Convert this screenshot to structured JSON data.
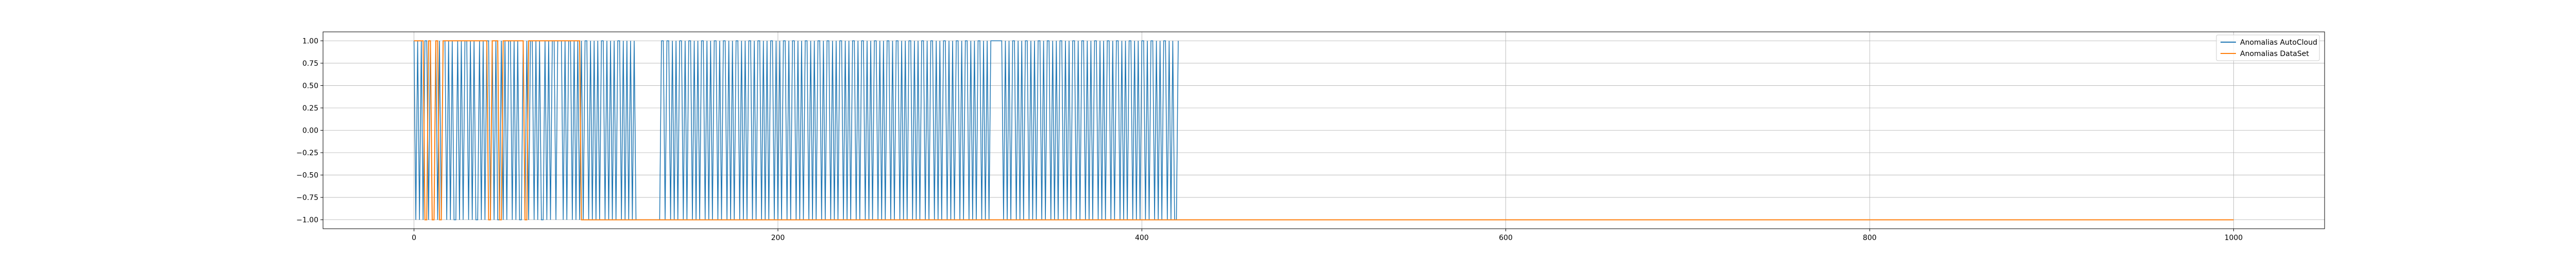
{
  "chart_data": {
    "type": "line",
    "title": "",
    "xlabel": "",
    "ylabel": "",
    "xlim": [
      -50,
      1050
    ],
    "ylim": [
      -1.1,
      1.1
    ],
    "xticks": [
      0,
      200,
      400,
      600,
      800,
      1000
    ],
    "xtick_labels": [
      "0",
      "200",
      "400",
      "600",
      "800",
      "1000"
    ],
    "yticks": [
      1.0,
      0.75,
      0.5,
      0.25,
      0.0,
      -0.25,
      -0.5,
      -0.75,
      -1.0
    ],
    "ytick_labels": [
      "1.00",
      "0.75",
      "0.50",
      "0.25",
      "0.00",
      "−0.25",
      "−0.50",
      "−0.75",
      "−1.00"
    ],
    "grid": true,
    "legend_position": "top-right",
    "series": [
      {
        "name": "Anomalias AutoCloud",
        "color": "#1f77b4",
        "values": [
          1,
          -1,
          1,
          -1,
          1,
          -1,
          1,
          1,
          -1,
          1,
          -1,
          -1,
          1,
          -1,
          1,
          -1,
          1,
          1,
          -1,
          1,
          -1,
          1,
          -1,
          -1,
          1,
          -1,
          1,
          -1,
          1,
          1,
          -1,
          1,
          -1,
          1,
          -1,
          -1,
          1,
          -1,
          1,
          -1,
          1,
          1,
          -1,
          1,
          -1,
          1,
          -1,
          -1,
          1,
          -1,
          1,
          -1,
          1,
          1,
          -1,
          1,
          -1,
          1,
          -1,
          -1,
          1,
          -1,
          1,
          -1,
          1,
          1,
          -1,
          1,
          -1,
          1,
          -1,
          -1,
          1,
          -1,
          1,
          -1,
          1,
          1,
          -1,
          1,
          1,
          1,
          -1,
          1,
          -1,
          1,
          1,
          -1,
          1,
          -1,
          1,
          -1,
          1,
          -1,
          1,
          1,
          -1,
          1,
          -1,
          1,
          -1,
          1,
          -1,
          1,
          1,
          -1,
          1,
          -1,
          1,
          -1,
          1,
          -1,
          1,
          1,
          -1,
          1,
          -1,
          1,
          -1,
          1,
          -1,
          1,
          -1,
          -1,
          -1,
          -1,
          -1,
          -1,
          -1,
          -1,
          -1,
          -1,
          -1,
          -1,
          -1,
          -1,
          1,
          1,
          -1,
          1,
          1,
          -1,
          1,
          -1,
          1,
          -1,
          1,
          1,
          -1,
          1,
          -1,
          1,
          1,
          -1,
          1,
          -1,
          1,
          -1,
          1,
          1,
          -1,
          1,
          -1,
          1,
          -1,
          1,
          1,
          -1,
          1,
          -1,
          1,
          1,
          -1,
          1,
          -1,
          1,
          -1,
          1,
          1,
          -1,
          1,
          -1,
          1,
          -1,
          1,
          1,
          -1,
          1,
          -1,
          1,
          1,
          -1,
          1,
          -1,
          1,
          -1,
          1,
          1,
          -1,
          1,
          -1,
          1,
          -1,
          1,
          1,
          -1,
          1,
          -1,
          1,
          1,
          -1,
          1,
          -1,
          1,
          -1,
          1,
          1,
          -1,
          1,
          -1,
          1,
          -1,
          1,
          1,
          -1,
          1,
          -1,
          1,
          1,
          -1,
          1,
          -1,
          1,
          -1,
          1,
          1,
          -1,
          1,
          -1,
          1,
          -1,
          1,
          1,
          -1,
          1,
          -1,
          1,
          1,
          -1,
          1,
          -1,
          1,
          -1,
          1,
          1,
          -1,
          1,
          -1,
          1,
          -1,
          1,
          1,
          -1,
          1,
          -1,
          1,
          1,
          -1,
          1,
          -1,
          1,
          -1,
          1,
          1,
          -1,
          1,
          -1,
          1,
          -1,
          1,
          1,
          -1,
          1,
          -1,
          1,
          1,
          -1,
          1,
          -1,
          1,
          -1,
          1,
          1,
          -1,
          1,
          -1,
          1,
          -1,
          1,
          1,
          -1,
          1,
          -1,
          1,
          1,
          -1,
          1,
          -1,
          1,
          -1,
          1,
          1,
          -1,
          1,
          -1,
          1,
          -1,
          1,
          1,
          1,
          1,
          1,
          1,
          1,
          -1,
          1,
          -1,
          1,
          -1,
          1,
          1,
          -1,
          1,
          -1,
          1,
          -1,
          1,
          1,
          -1,
          1,
          -1,
          1,
          -1,
          1,
          1,
          -1,
          1,
          -1,
          1,
          1,
          -1,
          1,
          -1,
          1,
          -1,
          1,
          1,
          -1,
          1,
          -1,
          1,
          -1,
          1,
          1,
          -1,
          1,
          -1,
          1,
          1,
          -1,
          1,
          -1,
          1,
          -1,
          1,
          1,
          -1,
          1,
          -1,
          1,
          -1,
          1,
          1,
          -1,
          1,
          -1,
          1,
          1,
          -1,
          1,
          -1,
          1,
          -1,
          1,
          1,
          -1,
          1,
          -1,
          1,
          -1,
          1,
          1,
          -1,
          1,
          -1,
          1,
          1,
          -1,
          1,
          -1,
          1,
          -1,
          1,
          1,
          -1,
          1,
          -1,
          1,
          -1,
          -1,
          1
        ]
      },
      {
        "name": "Anomalias DataSet",
        "color": "#ff7f0e",
        "segments": [
          {
            "x_start": 0,
            "x_end": 5,
            "value": 1
          },
          {
            "x_start": 6,
            "x_end": 7,
            "value": -1
          },
          {
            "x_start": 8,
            "x_end": 9,
            "value": 1
          },
          {
            "x_start": 10,
            "x_end": 11,
            "value": -1
          },
          {
            "x_start": 12,
            "x_end": 13,
            "value": 1
          },
          {
            "x_start": 14,
            "x_end": 15,
            "value": -1
          },
          {
            "x_start": 16,
            "x_end": 18,
            "value": 1
          },
          {
            "x_start": 19,
            "x_end": 40,
            "value": 1
          },
          {
            "x_start": 41,
            "x_end": 42,
            "value": -1
          },
          {
            "x_start": 43,
            "x_end": 46,
            "value": 1
          },
          {
            "x_start": 47,
            "x_end": 48,
            "value": -1
          },
          {
            "x_start": 49,
            "x_end": 60,
            "value": 1
          },
          {
            "x_start": 61,
            "x_end": 62,
            "value": -1
          },
          {
            "x_start": 63,
            "x_end": 91,
            "value": 1
          },
          {
            "x_start": 92,
            "x_end": 1000,
            "value": -1
          }
        ]
      }
    ]
  }
}
